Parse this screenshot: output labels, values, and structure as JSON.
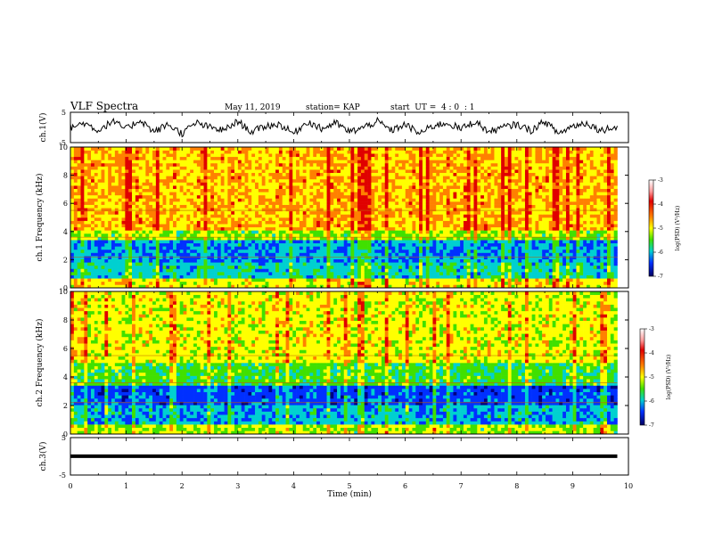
{
  "header": {
    "title": "VLF Spectra",
    "date": "May 11, 2019",
    "station": "station= KAP",
    "start": "start  UT =  4 : 0  : 1"
  },
  "colorbar": {
    "label": "log(PSD) (V²/Hz)",
    "ticks": [
      "-3",
      "-4",
      "-5",
      "-6",
      "-7"
    ]
  },
  "chart_data": [
    {
      "type": "line",
      "title": "VLF Spectra",
      "ylabel": "ch.1(V)",
      "ylim": [
        -5,
        5
      ],
      "xlim": [
        0,
        10
      ],
      "x_ticks": [
        0,
        1,
        2,
        3,
        4,
        5,
        6,
        7,
        8,
        9,
        10
      ],
      "y_ticks": [
        "5",
        "-5"
      ],
      "x_end": 9.8,
      "series": [
        {
          "x": [
            0,
            0.25,
            0.5,
            0.75,
            1,
            1.25,
            1.5,
            1.75,
            2,
            2.25,
            2.5,
            2.75,
            3,
            3.25,
            3.5,
            3.75,
            4,
            4.25,
            4.5,
            4.75,
            5,
            5.25,
            5.5,
            5.75,
            6,
            6.25,
            6.5,
            6.75,
            7,
            7.25,
            7.5,
            7.75,
            8,
            8.25,
            8.5,
            8.75,
            9,
            9.25,
            9.5,
            9.8
          ],
          "values": [
            0,
            1.5,
            -1,
            2,
            -0.5,
            2.5,
            -1.5,
            1,
            -2,
            1.5,
            0,
            -1,
            2,
            -1.5,
            0.5,
            1,
            -2,
            2,
            -0.5,
            1.5,
            -1.5,
            0,
            2,
            -1,
            1,
            -2,
            0.5,
            1.5,
            -0.5,
            2,
            -1.5,
            0,
            1,
            -1,
            2,
            -2,
            0.5,
            1.5,
            -1,
            0.5
          ]
        }
      ]
    },
    {
      "type": "heatmap",
      "ylabel": "ch.1 Frequency (kHz)",
      "ylim": [
        0,
        10
      ],
      "xlim": [
        0,
        10
      ],
      "y_ticks": [
        0,
        2,
        4,
        6,
        8,
        10
      ],
      "colorbar_range": [
        -7,
        -3
      ]
    },
    {
      "type": "heatmap",
      "ylabel": "ch.2 Frequency (kHz)",
      "ylim": [
        0,
        10
      ],
      "xlim": [
        0,
        10
      ],
      "y_ticks": [
        0,
        2,
        4,
        6,
        8,
        10
      ],
      "colorbar_range": [
        -7,
        -3
      ]
    },
    {
      "type": "line",
      "ylabel": "ch.3(V)",
      "xlabel": "Time (min)",
      "ylim": [
        -5,
        5
      ],
      "xlim": [
        0,
        10
      ],
      "x_ticks": [
        0,
        1,
        2,
        3,
        4,
        5,
        6,
        7,
        8,
        9,
        10
      ],
      "y_ticks": [
        "5",
        "-5"
      ],
      "series": [
        {
          "x": [
            0,
            9.8
          ],
          "values": [
            0.5,
            0.5
          ]
        }
      ]
    }
  ]
}
